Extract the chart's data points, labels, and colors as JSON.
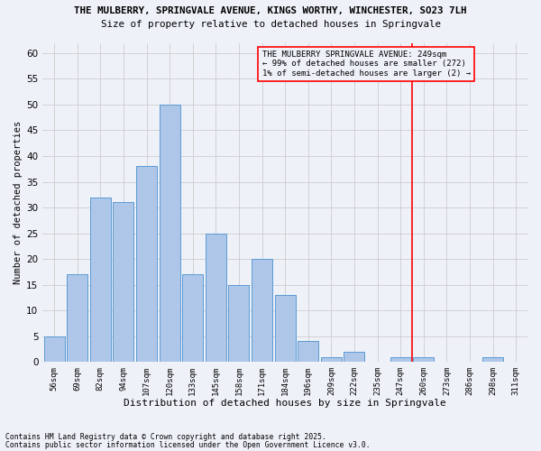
{
  "title1": "THE MULBERRY, SPRINGVALE AVENUE, KINGS WORTHY, WINCHESTER, SO23 7LH",
  "title2": "Size of property relative to detached houses in Springvale",
  "xlabel": "Distribution of detached houses by size in Springvale",
  "ylabel": "Number of detached properties",
  "categories": [
    "56sqm",
    "69sqm",
    "82sqm",
    "94sqm",
    "107sqm",
    "120sqm",
    "133sqm",
    "145sqm",
    "158sqm",
    "171sqm",
    "184sqm",
    "196sqm",
    "209sqm",
    "222sqm",
    "235sqm",
    "247sqm",
    "260sqm",
    "273sqm",
    "286sqm",
    "298sqm",
    "311sqm"
  ],
  "values": [
    5,
    17,
    32,
    31,
    38,
    50,
    17,
    25,
    15,
    20,
    13,
    4,
    1,
    2,
    0,
    1,
    1,
    0,
    0,
    1,
    0
  ],
  "bar_color": "#aec6e8",
  "bar_edge_color": "#5b9bd5",
  "grid_color": "#cccccc",
  "vline_index": 15,
  "vline_color": "red",
  "annotation_text": "THE MULBERRY SPRINGVALE AVENUE: 249sqm\n← 99% of detached houses are smaller (272)\n1% of semi-detached houses are larger (2) →",
  "annotation_box_color": "red",
  "ylim": [
    0,
    62
  ],
  "yticks": [
    0,
    5,
    10,
    15,
    20,
    25,
    30,
    35,
    40,
    45,
    50,
    55,
    60
  ],
  "footer1": "Contains HM Land Registry data © Crown copyright and database right 2025.",
  "footer2": "Contains public sector information licensed under the Open Government Licence v3.0.",
  "background_color": "#eef2f8"
}
